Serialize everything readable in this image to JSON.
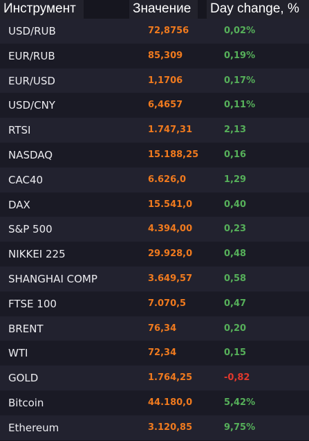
{
  "header": {
    "instrument": "Инструмент",
    "value": "Значение",
    "day_change": "Day change, %"
  },
  "colors": {
    "background": "#16161f",
    "row_odd": "#1a1a25",
    "row_even": "#22222f",
    "value": "#f07a1e",
    "positive": "#56b05a",
    "negative": "#e2382c",
    "text": "#ececf0"
  },
  "rows": [
    {
      "name": "USD/RUB",
      "value": "72,8756",
      "change": "0,02%",
      "trend": "up"
    },
    {
      "name": "EUR/RUB",
      "value": "85,309",
      "change": "0,19%",
      "trend": "up"
    },
    {
      "name": "EUR/USD",
      "value": "1,1706",
      "change": "0,17%",
      "trend": "up"
    },
    {
      "name": "USD/CNY",
      "value": "6,4657",
      "change": "0,11%",
      "trend": "up"
    },
    {
      "name": "RTSI",
      "value": "1.747,31",
      "change": "2,13",
      "trend": "up"
    },
    {
      "name": "NASDAQ",
      "value": "15.188,25",
      "change": "0,16",
      "trend": "up"
    },
    {
      "name": "CAC40",
      "value": "6.626,0",
      "change": "1,29",
      "trend": "up"
    },
    {
      "name": "DAX",
      "value": "15.541,0",
      "change": "0,40",
      "trend": "up"
    },
    {
      "name": "S&P 500",
      "value": "4.394,00",
      "change": "0,23",
      "trend": "up"
    },
    {
      "name": "NIKKEI 225",
      "value": "29.928,0",
      "change": "0,48",
      "trend": "up"
    },
    {
      "name": "SHANGHAI COMP",
      "value": "3.649,57",
      "change": "0,58",
      "trend": "up"
    },
    {
      "name": "FTSE 100",
      "value": "7.070,5",
      "change": "0,47",
      "trend": "up"
    },
    {
      "name": "BRENT",
      "value": "76,34",
      "change": "0,20",
      "trend": "up"
    },
    {
      "name": "WTI",
      "value": "72,34",
      "change": "0,15",
      "trend": "up"
    },
    {
      "name": "GOLD",
      "value": "1.764,25",
      "change": "-0,82",
      "trend": "down"
    },
    {
      "name": "Bitcoin",
      "value": "44.180,0",
      "change": "5,42%",
      "trend": "up"
    },
    {
      "name": "Ethereum",
      "value": "3.120,85",
      "change": "9,75%",
      "trend": "up"
    }
  ]
}
